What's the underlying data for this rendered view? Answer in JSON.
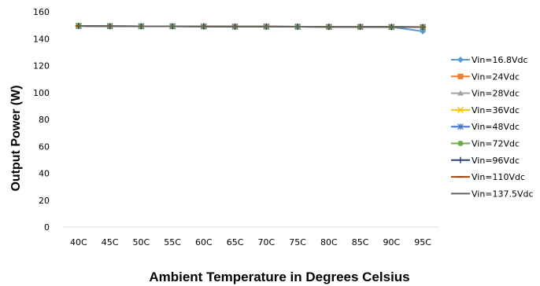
{
  "chart_data": {
    "type": "line",
    "xlabel": "Ambient Temperature in Degrees Celsius",
    "ylabel": "Output Power (W)",
    "categories": [
      "40C",
      "45C",
      "50C",
      "55C",
      "60C",
      "65C",
      "70C",
      "75C",
      "80C",
      "85C",
      "90C",
      "95C"
    ],
    "ylim": [
      0,
      160
    ],
    "yticks": [
      0,
      20,
      40,
      60,
      80,
      100,
      120,
      140,
      160
    ],
    "grid": false,
    "legend_position": "right",
    "series": [
      {
        "name": "Vin=16.8Vdc",
        "color": "#5B9BD5",
        "marker": "diamond",
        "values": [
          149.5,
          149.3,
          149.2,
          149.2,
          149.1,
          149.0,
          149.0,
          148.9,
          148.8,
          148.8,
          148.7,
          145.5
        ]
      },
      {
        "name": "Vin=24Vdc",
        "color": "#ED7D31",
        "marker": "square",
        "values": [
          149.5,
          149.3,
          149.2,
          149.2,
          149.1,
          149.0,
          149.0,
          148.9,
          148.8,
          148.8,
          148.7,
          148.6
        ]
      },
      {
        "name": "Vin=28Vdc",
        "color": "#A5A5A5",
        "marker": "triangle",
        "values": [
          149.5,
          149.3,
          149.2,
          149.2,
          149.1,
          149.0,
          149.0,
          148.9,
          148.8,
          148.8,
          148.7,
          148.6
        ]
      },
      {
        "name": "Vin=36Vdc",
        "color": "#FFC000",
        "marker": "x",
        "values": [
          149.5,
          149.3,
          149.2,
          149.2,
          149.1,
          149.0,
          149.0,
          148.9,
          148.8,
          148.8,
          148.7,
          148.6
        ]
      },
      {
        "name": "Vin=48Vdc",
        "color": "#4472C4",
        "marker": "star",
        "values": [
          149.5,
          149.3,
          149.2,
          149.2,
          149.1,
          149.0,
          149.0,
          148.9,
          148.8,
          148.8,
          148.7,
          148.6
        ]
      },
      {
        "name": "Vin=72Vdc",
        "color": "#70AD47",
        "marker": "circle",
        "values": [
          149.5,
          149.3,
          149.2,
          149.2,
          149.1,
          149.0,
          149.0,
          148.9,
          148.8,
          148.8,
          148.7,
          148.6
        ]
      },
      {
        "name": "Vin=96Vdc",
        "color": "#264478",
        "marker": "plus",
        "values": [
          149.5,
          149.3,
          149.2,
          149.2,
          149.1,
          149.0,
          149.0,
          148.9,
          148.8,
          148.8,
          148.7,
          148.6
        ]
      },
      {
        "name": "Vin=110Vdc",
        "color": "#9E480E",
        "marker": "dash",
        "values": [
          149.5,
          149.3,
          149.2,
          149.2,
          149.1,
          149.0,
          149.0,
          148.9,
          148.8,
          148.8,
          148.7,
          148.6
        ]
      },
      {
        "name": "Vin=137.5Vdc",
        "color": "#636363",
        "marker": "none",
        "values": [
          149.5,
          149.3,
          149.2,
          149.2,
          149.1,
          149.0,
          149.0,
          148.9,
          148.8,
          148.8,
          148.7,
          148.6
        ]
      }
    ]
  }
}
